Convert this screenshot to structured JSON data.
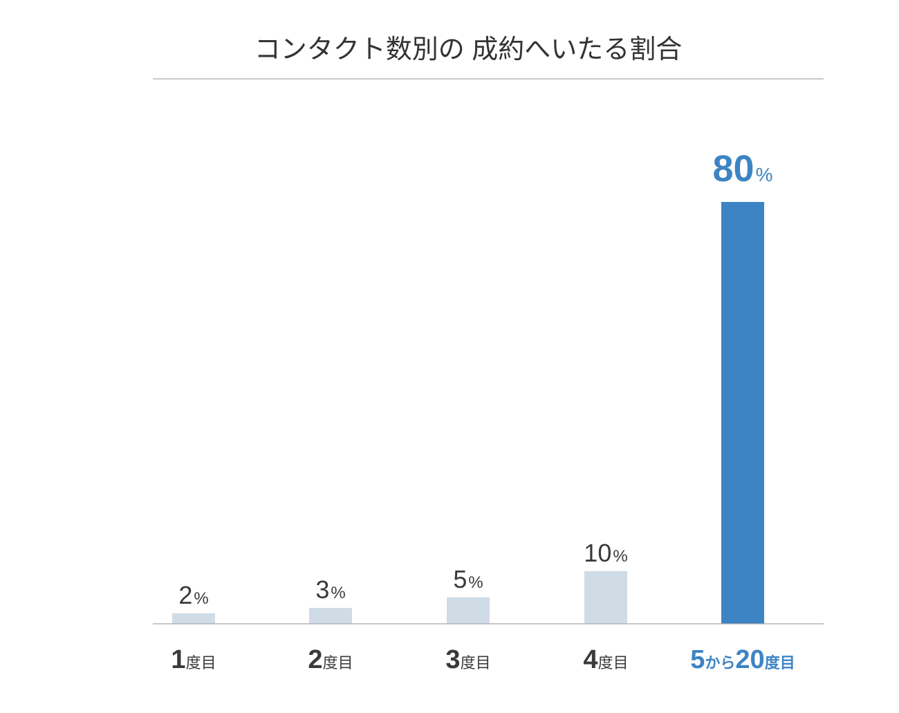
{
  "chart_data": {
    "type": "bar",
    "title": "コンタクト数別の 成約へいたる割合",
    "categories": [
      {
        "number": "1",
        "suffix_pre": "",
        "number2": "",
        "suffix": "度目"
      },
      {
        "number": "2",
        "suffix_pre": "",
        "number2": "",
        "suffix": "度目"
      },
      {
        "number": "3",
        "suffix_pre": "",
        "number2": "",
        "suffix": "度目"
      },
      {
        "number": "4",
        "suffix": "度目",
        "suffix_pre": "",
        "number2": ""
      },
      {
        "number": "5",
        "suffix_pre": "から",
        "number2": "20",
        "suffix": "度目"
      }
    ],
    "values": [
      2,
      3,
      5,
      10,
      80
    ],
    "value_unit": "%",
    "highlight_index": 4,
    "ylim": [
      0,
      80
    ],
    "grid": false,
    "colors": {
      "bar_default": "#cfdbe5",
      "bar_highlight": "#3d84c4",
      "text_default": "#3a3a3a",
      "text_highlight": "#3d84c4",
      "rule": "#a8a8a8",
      "title": "#333333"
    }
  }
}
